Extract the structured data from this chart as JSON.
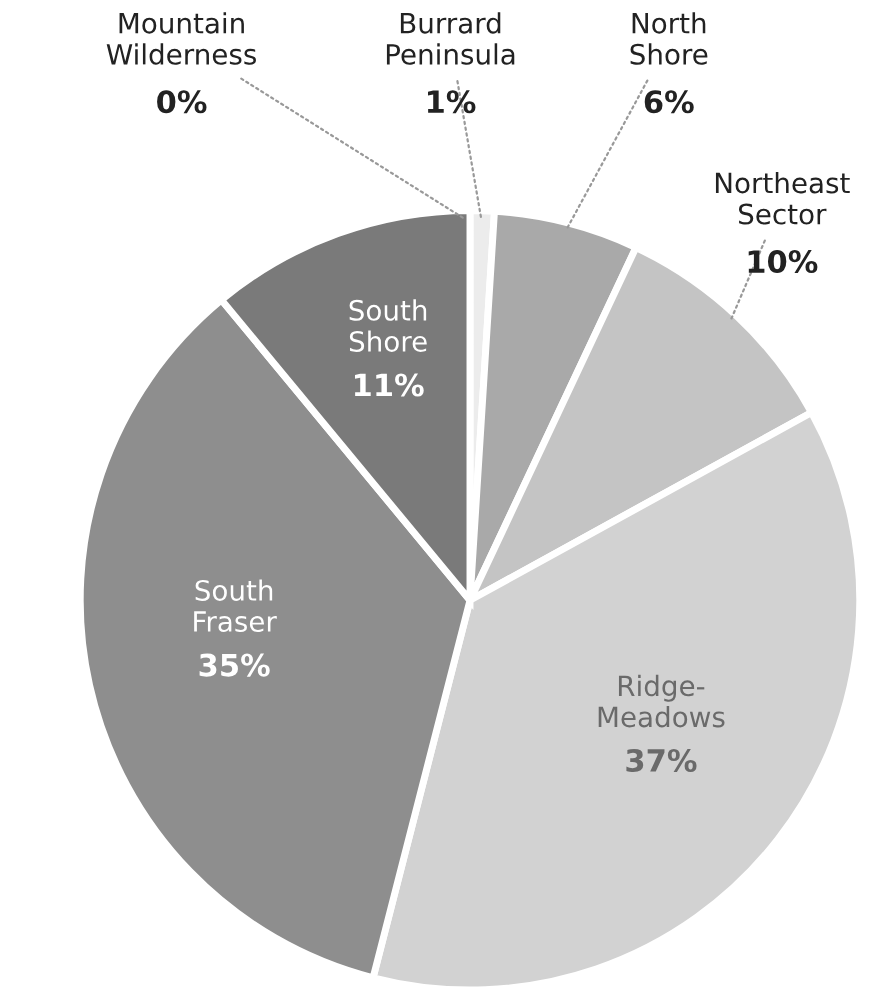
{
  "chart_data": {
    "type": "pie",
    "categories": [
      "Mountain Wilderness",
      "Burrard Peninsula",
      "North Shore",
      "Northeast Sector",
      "Ridge-Meadows",
      "South Fraser",
      "South Shore"
    ],
    "values": [
      0,
      1,
      6,
      10,
      37,
      35,
      11
    ],
    "value_labels": [
      "0%",
      "1%",
      "6%",
      "10%",
      "37%",
      "35%",
      "11%"
    ],
    "colors": [
      "#d8d8d8",
      "#ececec",
      "#a9a9a9",
      "#c4c4c4",
      "#d2d2d2",
      "#8e8e8e",
      "#7a7a7a"
    ]
  }
}
